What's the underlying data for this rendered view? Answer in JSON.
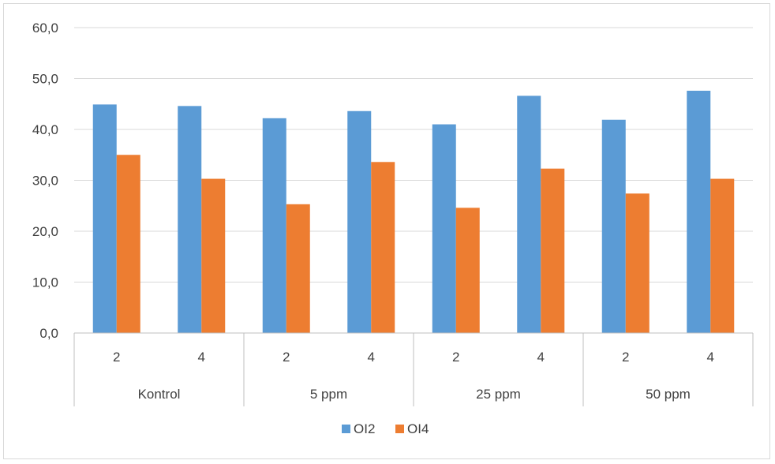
{
  "chart_data": {
    "type": "bar",
    "title": "",
    "xlabel": "",
    "ylabel": "",
    "ylim": [
      0,
      60
    ],
    "yticks": [
      "0,0",
      "10,0",
      "20,0",
      "30,0",
      "40,0",
      "50,0",
      "60,0"
    ],
    "grid": true,
    "legend_position": "bottom",
    "groups": [
      {
        "label": "Kontrol",
        "categories": [
          "2",
          "4"
        ]
      },
      {
        "label": "5 ppm",
        "categories": [
          "2",
          "4"
        ]
      },
      {
        "label": "25 ppm",
        "categories": [
          "2",
          "4"
        ]
      },
      {
        "label": "50 ppm",
        "categories": [
          "2",
          "4"
        ]
      }
    ],
    "series": [
      {
        "name": "OI2",
        "color": "#5b9bd5",
        "values": [
          44.9,
          44.6,
          42.2,
          43.6,
          41.0,
          46.6,
          41.9,
          47.6
        ]
      },
      {
        "name": "OI4",
        "color": "#ed7d31",
        "values": [
          35.0,
          30.3,
          25.3,
          33.6,
          24.6,
          32.3,
          27.4,
          30.3
        ]
      }
    ]
  }
}
